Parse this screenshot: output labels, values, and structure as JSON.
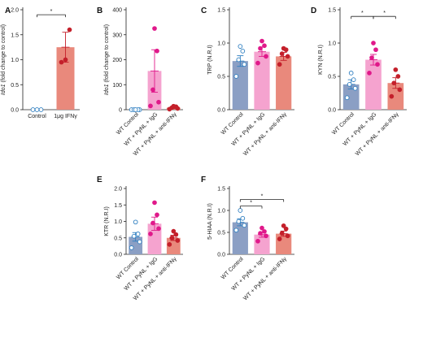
{
  "colors": {
    "control": "#8b9fc4",
    "igg": "#f5a3cf",
    "anti": "#e9897c",
    "dot_control": "#2f7fc1",
    "dot_igg": "#e0198a",
    "dot_anti": "#c4202b"
  },
  "chart_data": [
    {
      "panel": "A",
      "type": "bar",
      "ylabel_italic": "Ido1",
      "ylabel_rest": " (fold change to control)",
      "ylim": [
        0,
        2.0
      ],
      "yticks": [
        "0.0",
        "0.5",
        "1.0",
        "1.5",
        "2.0"
      ],
      "categories": [
        "Control",
        "1μg IFNγ"
      ],
      "values": [
        0.0,
        1.25
      ],
      "errors": [
        0.0,
        0.3
      ],
      "points": [
        [
          0.0,
          0.0,
          0.0
        ],
        [
          0.95,
          1.0,
          1.6
        ]
      ],
      "point_styles": [
        "open",
        "filled"
      ],
      "sig": [
        {
          "from": 0,
          "to": 1,
          "label": "*",
          "y": 1.9
        }
      ]
    },
    {
      "panel": "B",
      "type": "bar",
      "ylabel_italic": "Ido1",
      "ylabel_rest": " (fold change to control)",
      "ylim": [
        0,
        400
      ],
      "yticks": [
        "0",
        "100",
        "200",
        "300",
        "400"
      ],
      "categories": [
        "WT Control",
        "WT + PyNL + IgG",
        "WT + PyNL + anti-IFNγ"
      ],
      "values": [
        0,
        155,
        8
      ],
      "errors": [
        0,
        85,
        4
      ],
      "points": [
        [
          0,
          0,
          0,
          0,
          0
        ],
        [
          15,
          30,
          80,
          235,
          325
        ],
        [
          2,
          5,
          8,
          12,
          14
        ]
      ],
      "point_styles": [
        "open",
        "filled",
        "filled"
      ],
      "sig": []
    },
    {
      "panel": "C",
      "type": "bar",
      "ylabel": "TRP (N.R.I)",
      "ylim": [
        0,
        1.5
      ],
      "yticks": [
        "0.0",
        "0.5",
        "1.0",
        "1.5"
      ],
      "categories": [
        "WT Control",
        "WT + PyNL + IgG",
        "WT + PyNL + anti-IFNγ"
      ],
      "values": [
        0.73,
        0.87,
        0.8
      ],
      "errors": [
        0.08,
        0.07,
        0.06
      ],
      "points": [
        [
          0.5,
          0.68,
          0.75,
          0.88,
          0.95
        ],
        [
          0.7,
          0.8,
          0.92,
          0.96,
          1.03
        ],
        [
          0.68,
          0.8,
          0.84,
          0.9,
          0.92
        ]
      ],
      "point_styles": [
        "open",
        "filled",
        "filled"
      ],
      "sig": []
    },
    {
      "panel": "D",
      "type": "bar",
      "ylabel": "KYN (N.R.I)",
      "ylim": [
        0,
        1.5
      ],
      "yticks": [
        "0.0",
        "0.5",
        "1.0",
        "1.5"
      ],
      "categories": [
        "WT Control",
        "WT + PyNL + IgG",
        "WT + PyNL + anti-IFNγ"
      ],
      "values": [
        0.38,
        0.75,
        0.4
      ],
      "errors": [
        0.07,
        0.08,
        0.08
      ],
      "points": [
        [
          0.18,
          0.32,
          0.38,
          0.45,
          0.55
        ],
        [
          0.55,
          0.68,
          0.78,
          0.9,
          1.0
        ],
        [
          0.2,
          0.3,
          0.4,
          0.5,
          0.6
        ]
      ],
      "point_styles": [
        "open",
        "filled",
        "filled"
      ],
      "sig": [
        {
          "from": 0,
          "to": 1,
          "label": "*",
          "y": 1.4
        },
        {
          "from": 1,
          "to": 2,
          "label": "*",
          "y": 1.4
        }
      ]
    },
    {
      "panel": "E",
      "type": "bar",
      "ylabel": "KTR (N.R.I)",
      "ylim": [
        0,
        2.0
      ],
      "yticks": [
        "0.0",
        "0.5",
        "1.0",
        "1.5",
        "2.0"
      ],
      "categories": [
        "WT Control",
        "WT + PyNL + IgG",
        "WT + PyNL + anti-IFNγ"
      ],
      "values": [
        0.53,
        0.93,
        0.5
      ],
      "errors": [
        0.13,
        0.2,
        0.08
      ],
      "points": [
        [
          0.2,
          0.38,
          0.55,
          0.62,
          0.98
        ],
        [
          0.62,
          0.78,
          0.95,
          1.2,
          1.57
        ],
        [
          0.3,
          0.42,
          0.5,
          0.6,
          0.7
        ]
      ],
      "point_styles": [
        "open",
        "filled",
        "filled"
      ],
      "sig": []
    },
    {
      "panel": "F",
      "type": "bar",
      "ylabel": "5-HIAA (N.R.I)",
      "ylim": [
        0,
        1.5
      ],
      "yticks": [
        "0.0",
        "0.5",
        "1.0",
        "1.5"
      ],
      "categories": [
        "WT Control",
        "WT + PyNL + IgG",
        "WT + PyNL + anti-IFNγ"
      ],
      "values": [
        0.73,
        0.45,
        0.47
      ],
      "errors": [
        0.08,
        0.06,
        0.06
      ],
      "points": [
        [
          0.55,
          0.66,
          0.75,
          0.82,
          1.0
        ],
        [
          0.3,
          0.42,
          0.48,
          0.52,
          0.6
        ],
        [
          0.35,
          0.42,
          0.48,
          0.58,
          0.65
        ]
      ],
      "point_styles": [
        "open",
        "filled",
        "filled"
      ],
      "sig": [
        {
          "from": 0,
          "to": 1,
          "label": "*",
          "y": 1.1
        },
        {
          "from": 0,
          "to": 2,
          "label": "*",
          "y": 1.25
        }
      ]
    }
  ]
}
